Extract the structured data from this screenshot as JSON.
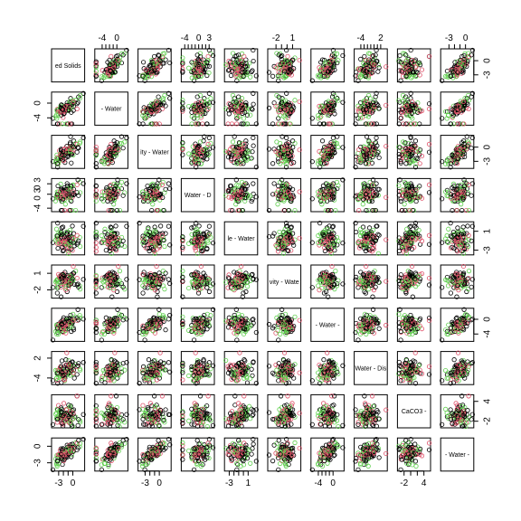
{
  "chart_data": {
    "type": "scatter",
    "title": "",
    "matrix_size": 10,
    "variable_labels": [
      "ed Solids",
      "- Water",
      "ity - Water",
      "Water - D",
      "le - Water",
      "vity - Wate",
      "- Water -",
      "Water - Dis",
      "CaCO3 -",
      "- Water -"
    ],
    "colors": [
      "#000000",
      "#DF536B",
      "#61D04F"
    ],
    "grid": false,
    "legend": "none",
    "axes": [
      {
        "side": "top",
        "panel": 1,
        "range": [
          -6,
          3
        ],
        "ticks": [
          -4,
          -3,
          -2,
          -1,
          0
        ],
        "labels": [
          "-4",
          "",
          "",
          "",
          "0"
        ]
      },
      {
        "side": "top",
        "panel": 3,
        "range": [
          -5,
          4.5
        ],
        "ticks": [
          -4,
          -3,
          -2,
          -1,
          0,
          1,
          2,
          3
        ],
        "labels": [
          "-4",
          "",
          "",
          "",
          "0",
          "",
          "",
          "3"
        ]
      },
      {
        "side": "top",
        "panel": 5,
        "range": [
          -3.5,
          2.5
        ],
        "ticks": [
          -2,
          -1,
          0,
          1
        ],
        "labels": [
          "-2",
          "",
          "",
          "1"
        ]
      },
      {
        "side": "top",
        "panel": 7,
        "range": [
          -6,
          4
        ],
        "ticks": [
          -4,
          -3,
          -2,
          -1,
          0,
          1,
          2
        ],
        "labels": [
          "-4",
          "",
          "",
          "",
          "",
          "",
          "2"
        ]
      },
      {
        "side": "top",
        "panel": 9,
        "range": [
          -4.5,
          1.5
        ],
        "ticks": [
          -3,
          -2,
          -1,
          0
        ],
        "labels": [
          "-3",
          "",
          "",
          "0"
        ]
      },
      {
        "side": "right",
        "panel": 0,
        "range": [
          -4.5,
          2.5
        ],
        "ticks": [
          -3,
          0
        ],
        "labels": [
          "-3",
          "0"
        ]
      },
      {
        "side": "right",
        "panel": 2,
        "range": [
          -4.5,
          2.5
        ],
        "ticks": [
          -3,
          0
        ],
        "labels": [
          "-3",
          "0"
        ]
      },
      {
        "side": "right",
        "panel": 4,
        "range": [
          -4,
          3
        ],
        "ticks": [
          -3,
          1
        ],
        "labels": [
          "-3",
          "1"
        ]
      },
      {
        "side": "right",
        "panel": 6,
        "range": [
          -6,
          3
        ],
        "ticks": [
          -4,
          0
        ],
        "labels": [
          "-4",
          "0"
        ]
      },
      {
        "side": "right",
        "panel": 8,
        "range": [
          -4,
          6
        ],
        "ticks": [
          -2,
          4
        ],
        "labels": [
          "-2",
          "4"
        ]
      },
      {
        "side": "left",
        "panel": 1,
        "range": [
          -6,
          3
        ],
        "ticks": [
          -4,
          0
        ],
        "labels": [
          "-4",
          "0"
        ]
      },
      {
        "side": "left",
        "panel": 3,
        "range": [
          -5,
          4.5
        ],
        "ticks": [
          -4,
          0,
          3
        ],
        "labels": [
          "-4",
          "0 3",
          "0 3"
        ]
      },
      {
        "side": "left",
        "panel": 5,
        "range": [
          -3.5,
          2.5
        ],
        "ticks": [
          -2,
          1
        ],
        "labels": [
          "-2",
          "1"
        ]
      },
      {
        "side": "left",
        "panel": 7,
        "range": [
          -6,
          4
        ],
        "ticks": [
          -4,
          2
        ],
        "labels": [
          "-4",
          "2"
        ]
      },
      {
        "side": "left",
        "panel": 9,
        "range": [
          -4.5,
          1.5
        ],
        "ticks": [
          -3,
          0
        ],
        "labels": [
          "-3",
          "0"
        ]
      },
      {
        "side": "bottom",
        "panel": 0,
        "range": [
          -4.5,
          2.5
        ],
        "ticks": [
          -3,
          -2,
          -1,
          0
        ],
        "labels": [
          "-3",
          "",
          "",
          "0"
        ]
      },
      {
        "side": "bottom",
        "panel": 2,
        "range": [
          -4.5,
          2.5
        ],
        "ticks": [
          -3,
          -2,
          -1,
          0
        ],
        "labels": [
          "-3",
          "",
          "",
          "0"
        ]
      },
      {
        "side": "bottom",
        "panel": 4,
        "range": [
          -4,
          3
        ],
        "ticks": [
          -3,
          -2,
          -1,
          0,
          1
        ],
        "labels": [
          "-3",
          "",
          "",
          "",
          "1"
        ]
      },
      {
        "side": "bottom",
        "panel": 6,
        "range": [
          -6,
          3
        ],
        "ticks": [
          -4,
          -3,
          -2,
          -1,
          0
        ],
        "labels": [
          "-4",
          "",
          "",
          "",
          "0"
        ]
      },
      {
        "side": "bottom",
        "panel": 8,
        "range": [
          -4,
          6
        ],
        "ticks": [
          -2,
          0,
          2,
          4
        ],
        "labels": [
          "-2",
          "",
          "",
          "4"
        ]
      }
    ]
  }
}
